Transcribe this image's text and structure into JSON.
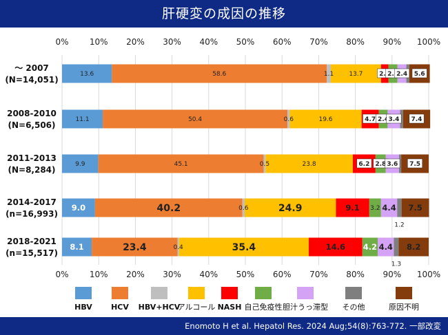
{
  "header": {
    "title": "肝硬変の成因の推移"
  },
  "footer": {
    "citation": "Enomoto H et al. Hepatol Res. 2024 Aug;54(8):763-772.",
    "note": "一部改変"
  },
  "chart_data": {
    "type": "bar",
    "orientation": "horizontal",
    "stacked": true,
    "title": "肝硬変の成因の推移",
    "xlim": [
      0,
      100
    ],
    "x_tick_labels": [
      "0%",
      "10%",
      "20%",
      "30%",
      "40%",
      "50%",
      "60%",
      "70%",
      "80%",
      "90%",
      "100%"
    ],
    "grid": true,
    "legend_position": "bottom",
    "categories": [
      {
        "period": "～ 2007",
        "n": "(N=14,051)"
      },
      {
        "period": "2008-2010",
        "n": "(N=6,506)"
      },
      {
        "period": "2011-2013",
        "n": "(N=8,284)"
      },
      {
        "period": "2014-2017",
        "n": "(n=16,993)"
      },
      {
        "period": "2018-2021",
        "n": "(n=15,517)"
      }
    ],
    "series": [
      {
        "name": "HBV",
        "color": "#5b9bd5",
        "values": [
          13.6,
          11.1,
          9.9,
          9.0,
          8.1
        ],
        "labels": [
          "13.6",
          "11.1",
          "9.9",
          "9.0",
          "8.1"
        ]
      },
      {
        "name": "HCV",
        "color": "#ed7d31",
        "values": [
          58.6,
          50.4,
          45.1,
          40.2,
          23.4
        ],
        "labels": [
          "58.6",
          "50.4",
          "45.1",
          "40.2",
          "23.4"
        ]
      },
      {
        "name": "HBV+HCV",
        "color": "#bfbfbf",
        "values": [
          1.1,
          0.6,
          0.5,
          0.6,
          0.4
        ],
        "labels": [
          "1.1",
          "0.6",
          "0.5",
          "0.6",
          "0.4"
        ]
      },
      {
        "name": "アルコール",
        "color": "#ffc000",
        "values": [
          13.7,
          19.6,
          23.8,
          24.9,
          35.4
        ],
        "labels": [
          "13.7",
          "19.6",
          "23.8",
          "24.9",
          "35.4"
        ]
      },
      {
        "name": "NASH",
        "color": "#ff0000",
        "values": [
          2.0,
          4.7,
          6.2,
          9.1,
          14.6
        ],
        "labels": [
          "2.0",
          "4.7",
          "6.2",
          "9.1",
          "14.6"
        ]
      },
      {
        "name": "自己免疫性",
        "color": "#70ad47",
        "values": [
          2.5,
          2.4,
          2.8,
          3.2,
          4.2
        ],
        "labels": [
          "2.5",
          "2.4",
          "2.8",
          "3.2",
          "4.2"
        ]
      },
      {
        "name": "胆汁うっ滞型",
        "color": "#d4a3f5",
        "values": [
          2.4,
          3.4,
          3.6,
          4.4,
          4.4
        ],
        "labels": [
          "2.4",
          "3.4",
          "3.6",
          "4.4",
          "4.4"
        ]
      },
      {
        "name": "その他",
        "color": "#7f7f7f",
        "values": [
          0.8,
          0.8,
          0.6,
          1.2,
          1.3
        ],
        "labels": [
          "",
          "",
          "",
          "1.2",
          "1.3"
        ]
      },
      {
        "name": "原因不明",
        "color": "#843c0c",
        "values": [
          5.6,
          7.4,
          7.5,
          7.5,
          8.2
        ],
        "labels": [
          "5.6",
          "7.4",
          "7.5",
          "7.5",
          "8.2"
        ]
      }
    ]
  }
}
